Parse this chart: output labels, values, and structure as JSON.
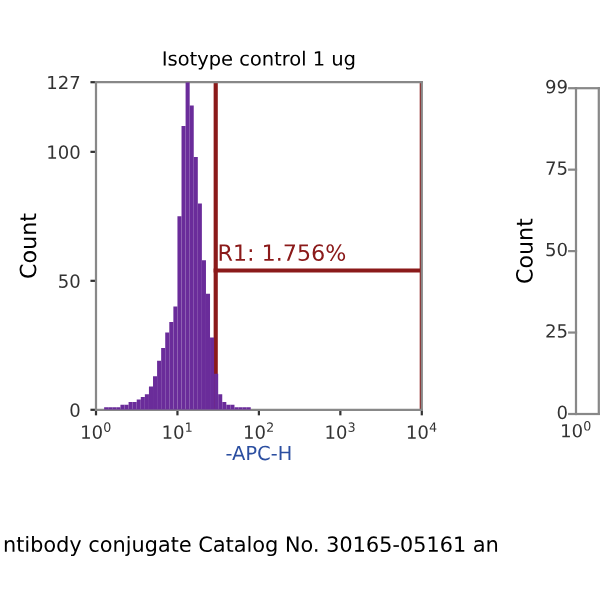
{
  "chart_data": [
    {
      "type": "histogram",
      "title": "Isotype control 1 ug",
      "xlabel": "-APC-H",
      "ylabel": "Count",
      "log": "x",
      "color": "#6a2c9a",
      "bins": [
        1.259,
        1.413,
        1.585,
        1.778,
        1.995,
        2.239,
        2.512,
        2.818,
        3.162,
        3.548,
        3.981,
        4.467,
        5.012,
        5.623,
        6.31,
        7.079,
        7.943,
        8.913,
        10,
        11.22,
        12.59,
        14.13,
        15.85,
        17.78,
        19.95,
        22.39,
        25.12,
        28.18,
        31.62,
        35.48,
        39.81,
        44.67,
        50.12,
        56.23,
        63.1,
        70.79,
        79.43
      ],
      "values": [
        1,
        1,
        1,
        1,
        2,
        2,
        3,
        3,
        4,
        5,
        6,
        9,
        13,
        19,
        24,
        30,
        34,
        40,
        75,
        110,
        127,
        118,
        98,
        80,
        58,
        45,
        28,
        14,
        6,
        3,
        2,
        2,
        1,
        1,
        1,
        1
      ],
      "series": [
        {
          "type": "line",
          "color": "#8b1a1a",
          "x": [
            29.5,
            10000
          ],
          "values": [
            54,
            54
          ]
        }
      ],
      "ref_lines": [
        {
          "axis": "x",
          "value": 29.5,
          "color": "#8b1a1a"
        },
        {
          "axis": "x",
          "value": 10000,
          "color": "#8b1a1a"
        }
      ],
      "annotations": [
        {
          "text": "R1: 1.756%",
          "x": 31,
          "y": 56
        },
        "ntibody conjugate Catalog No. 30165-05161 an"
      ],
      "xlim": [
        1,
        10000
      ],
      "xticks": [
        {
          "value": 1,
          "label": "10$^{0}$"
        },
        {
          "value": 10,
          "label": "10$^{1}$"
        },
        {
          "value": 100,
          "label": "10$^{2}$"
        },
        {
          "value": 1000,
          "label": "10$^{3}$"
        },
        {
          "value": 10000,
          "label": "10$^{4}$"
        }
      ],
      "ylim": [
        0,
        127
      ],
      "yticks": [
        0,
        50,
        100,
        127
      ],
      "grid": false,
      "legend": false
    },
    {
      "type": "other",
      "ylabel": "Count",
      "annotations": [
        "10$^{0}$",
        "0",
        "25",
        "50",
        "75",
        "99"
      ]
    }
  ]
}
